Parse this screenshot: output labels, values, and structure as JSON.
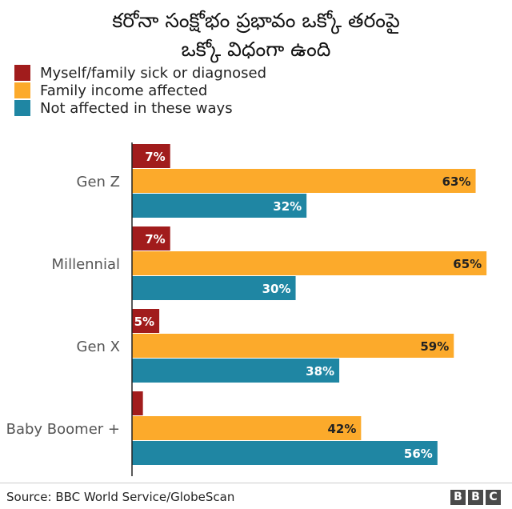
{
  "title_lines": [
    "కరోనా సంక్షోభం ప్రభావం ఒక్కో తరంపై",
    "ఒక్కో విధంగా ఉంది"
  ],
  "source": "Source: BBC World Service/GlobeScan",
  "logo_letters": [
    "B",
    "B",
    "C"
  ],
  "colors": {
    "sick": "#a11c1c",
    "income": "#fcaa2b",
    "not_affected": "#1f86a3"
  },
  "chart_data": {
    "type": "bar",
    "orientation": "horizontal",
    "title": "కరోనా సంక్షోభం ప్రభావం ఒక్కో తరంపై ఒక్కో విధంగా ఉంది",
    "legend_position": "top-left",
    "grid": false,
    "xlim": [
      0,
      66
    ],
    "categories": [
      "Gen Z",
      "Millennial",
      "Gen X",
      "Baby Boomer +"
    ],
    "series": [
      {
        "name": "Myself/family sick or diagnosed",
        "key": "sick",
        "values": [
          7,
          7,
          5,
          2
        ],
        "labels": [
          "7%",
          "7%",
          "5%",
          ""
        ]
      },
      {
        "name": "Family income affected",
        "key": "income",
        "values": [
          63,
          65,
          59,
          42
        ],
        "labels": [
          "63%",
          "65%",
          "59%",
          "42%"
        ]
      },
      {
        "name": "Not affected in these ways",
        "key": "not_affected",
        "values": [
          32,
          30,
          38,
          56
        ],
        "labels": [
          "32%",
          "30%",
          "38%",
          "56%"
        ]
      }
    ]
  }
}
